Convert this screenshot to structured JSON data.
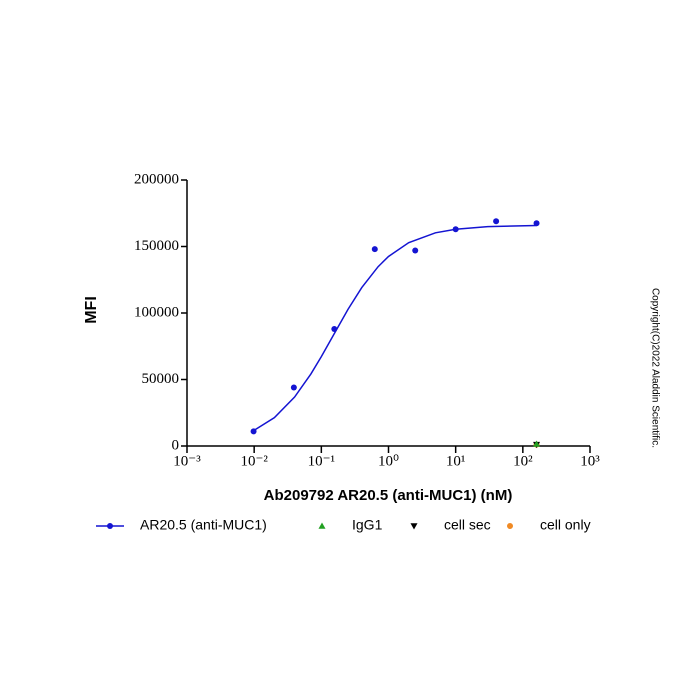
{
  "chart_data": {
    "type": "scatter",
    "x_label": "Ab209792 AR20.5 (anti-MUC1) (nM)",
    "y_label": "MFI",
    "watermark": "Copyright(C)2022 Aladdin Scientific.",
    "log_x": true,
    "xlim": [
      0.001,
      1000
    ],
    "xticks": [
      {
        "value": 0.001,
        "label": "10⁻³"
      },
      {
        "value": 0.01,
        "label": "10⁻²"
      },
      {
        "value": 0.1,
        "label": "10⁻¹"
      },
      {
        "value": 1,
        "label": "10⁰"
      },
      {
        "value": 10,
        "label": "10¹"
      },
      {
        "value": 100,
        "label": "10²"
      },
      {
        "value": 1000,
        "label": "10³"
      }
    ],
    "ylim": [
      0,
      200000
    ],
    "yticks": [
      0,
      50000,
      100000,
      150000,
      200000
    ],
    "series": [
      {
        "name": "AR20.5 (anti-MUC1)",
        "color": "#1414d2",
        "marker": "circle",
        "x": [
          0.0098,
          0.039,
          0.156,
          0.625,
          2.5,
          10,
          40,
          160
        ],
        "values": [
          11000,
          44000,
          88000,
          148000,
          147000,
          163000,
          169000,
          167500
        ],
        "fit": {
          "x": [
            0.0098,
            0.02,
            0.04,
            0.07,
            0.1,
            0.15,
            0.25,
            0.4,
            0.7,
            1,
            2,
            5,
            10,
            30,
            160
          ],
          "values": [
            11570,
            21300,
            36800,
            54200,
            67200,
            83000,
            102800,
            119100,
            134800,
            142500,
            152900,
            160300,
            163000,
            164900,
            165800
          ]
        }
      },
      {
        "name": "IgG1",
        "color": "#22a022",
        "marker": "triangle-up",
        "x": [
          160
        ],
        "values": [
          1500
        ]
      },
      {
        "name": "cell sec",
        "color": "#000000",
        "marker": "triangle-down",
        "x": [
          160
        ],
        "values": [
          1000
        ]
      },
      {
        "name": "cell only",
        "color": "#f08a24",
        "marker": "circle",
        "x": [
          160
        ],
        "values": [
          1000
        ]
      }
    ]
  }
}
